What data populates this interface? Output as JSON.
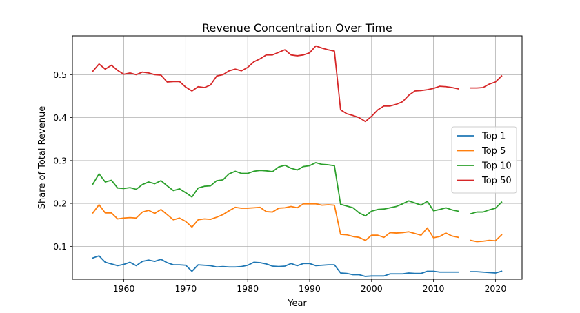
{
  "chart_data": {
    "type": "line",
    "title": "Revenue Concentration Over Time",
    "xlabel": "Year",
    "ylabel": "Share of Total Revenue",
    "xlim": [
      1951.7,
      2024.3
    ],
    "ylim": [
      0.0235,
      0.5905
    ],
    "xticks": [
      1960,
      1970,
      1980,
      1990,
      2000,
      2010,
      2020
    ],
    "yticks": [
      0.1,
      0.2,
      0.3,
      0.4,
      0.5
    ],
    "xtick_labels": [
      "1960",
      "1970",
      "1980",
      "1990",
      "2000",
      "2010",
      "2020"
    ],
    "ytick_labels": [
      "0.1",
      "0.2",
      "0.3",
      "0.4",
      "0.5"
    ],
    "grid": true,
    "legend_position": "center-right",
    "x": [
      1955,
      1956,
      1957,
      1958,
      1959,
      1960,
      1961,
      1962,
      1963,
      1964,
      1965,
      1966,
      1967,
      1968,
      1969,
      1970,
      1971,
      1972,
      1973,
      1974,
      1975,
      1976,
      1977,
      1978,
      1979,
      1980,
      1981,
      1982,
      1983,
      1984,
      1985,
      1986,
      1987,
      1988,
      1989,
      1990,
      1991,
      1992,
      1993,
      1994,
      1995,
      1996,
      1997,
      1998,
      1999,
      2000,
      2001,
      2002,
      2003,
      2004,
      2005,
      2006,
      2007,
      2008,
      2009,
      2010,
      2011,
      2012,
      2013,
      2014,
      2015,
      2016,
      2017,
      2018,
      2019,
      2020,
      2021
    ],
    "series": [
      {
        "name": "Top 1",
        "color": "#1f77b4",
        "values": [
          0.073,
          0.078,
          0.063,
          0.059,
          0.055,
          0.058,
          0.063,
          0.055,
          0.065,
          0.068,
          0.065,
          0.07,
          0.062,
          0.057,
          0.057,
          0.056,
          0.042,
          0.057,
          0.056,
          0.055,
          0.052,
          0.053,
          0.052,
          0.052,
          0.053,
          0.056,
          0.063,
          0.062,
          0.059,
          0.054,
          0.053,
          0.054,
          0.06,
          0.055,
          0.06,
          0.06,
          0.055,
          0.056,
          0.057,
          0.057,
          0.038,
          0.037,
          0.034,
          0.034,
          0.03,
          0.031,
          0.031,
          0.031,
          0.036,
          0.036,
          0.036,
          0.038,
          0.037,
          0.037,
          0.042,
          0.042,
          0.04,
          0.04,
          0.04,
          0.04,
          null,
          0.041,
          0.041,
          0.04,
          0.039,
          0.038,
          0.042
        ]
      },
      {
        "name": "Top 5",
        "color": "#ff7f0e",
        "values": [
          0.178,
          0.197,
          0.178,
          0.178,
          0.164,
          0.166,
          0.167,
          0.166,
          0.18,
          0.184,
          0.177,
          0.186,
          0.174,
          0.162,
          0.166,
          0.158,
          0.145,
          0.162,
          0.164,
          0.163,
          0.168,
          0.174,
          0.183,
          0.191,
          0.189,
          0.189,
          0.19,
          0.191,
          0.181,
          0.18,
          0.189,
          0.19,
          0.193,
          0.19,
          0.199,
          0.199,
          0.199,
          0.196,
          0.197,
          0.196,
          0.128,
          0.127,
          0.123,
          0.121,
          0.114,
          0.126,
          0.126,
          0.121,
          0.132,
          0.131,
          0.132,
          0.134,
          0.13,
          0.126,
          0.143,
          0.12,
          0.123,
          0.131,
          0.124,
          0.121,
          null,
          0.114,
          0.111,
          0.112,
          0.114,
          0.113,
          0.127
        ]
      },
      {
        "name": "Top 10",
        "color": "#2ca02c",
        "values": [
          0.245,
          0.269,
          0.25,
          0.254,
          0.236,
          0.235,
          0.237,
          0.233,
          0.244,
          0.25,
          0.246,
          0.253,
          0.241,
          0.23,
          0.234,
          0.225,
          0.215,
          0.236,
          0.24,
          0.241,
          0.253,
          0.255,
          0.269,
          0.275,
          0.27,
          0.27,
          0.275,
          0.277,
          0.276,
          0.274,
          0.285,
          0.289,
          0.282,
          0.278,
          0.286,
          0.288,
          0.295,
          0.291,
          0.29,
          0.288,
          0.198,
          0.194,
          0.19,
          0.178,
          0.171,
          0.182,
          0.186,
          0.187,
          0.19,
          0.193,
          0.199,
          0.206,
          0.201,
          0.196,
          0.205,
          0.183,
          0.186,
          0.19,
          0.185,
          0.182,
          null,
          0.176,
          0.18,
          0.18,
          0.185,
          0.189,
          0.203
        ]
      },
      {
        "name": "Top 50",
        "color": "#d62728",
        "values": [
          0.508,
          0.525,
          0.513,
          0.522,
          0.51,
          0.501,
          0.504,
          0.5,
          0.506,
          0.504,
          0.5,
          0.499,
          0.483,
          0.484,
          0.484,
          0.471,
          0.462,
          0.472,
          0.47,
          0.476,
          0.497,
          0.5,
          0.509,
          0.513,
          0.509,
          0.517,
          0.53,
          0.537,
          0.546,
          0.546,
          0.552,
          0.558,
          0.546,
          0.544,
          0.546,
          0.551,
          0.567,
          0.562,
          0.558,
          0.555,
          0.418,
          0.409,
          0.405,
          0.4,
          0.391,
          0.403,
          0.418,
          0.427,
          0.427,
          0.431,
          0.437,
          0.452,
          0.462,
          0.463,
          0.465,
          0.468,
          0.473,
          0.472,
          0.47,
          0.467,
          null,
          0.469,
          0.469,
          0.47,
          0.478,
          0.483,
          0.497
        ]
      }
    ]
  }
}
